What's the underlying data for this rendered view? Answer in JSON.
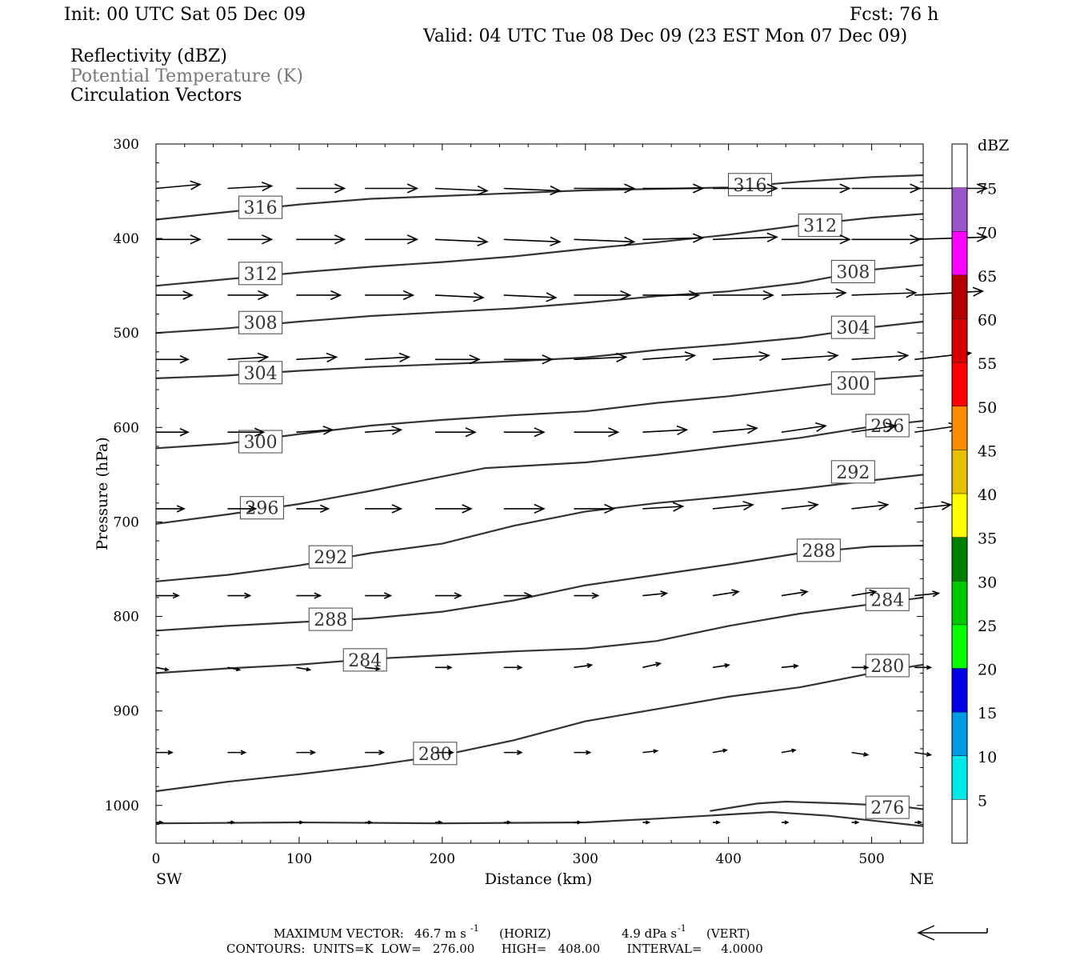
{
  "header": {
    "init": "Init: 00 UTC Sat 05 Dec 09",
    "fcst": "Fcst:   76 h",
    "valid": "Valid: 04 UTC Tue 08 Dec 09 (23 EST Mon 07 Dec 09)"
  },
  "legend": {
    "line1": "Reflectivity (dBZ)",
    "line2": "Potential Temperature (K)",
    "line3": "Circulation Vectors"
  },
  "footer": {
    "max_prefix": "MAXIMUM VECTOR:",
    "max_horiz_val": "46.7 m s",
    "max_horiz_unit": "(HORIZ)",
    "max_vert_val": "4.9 dPa s",
    "max_vert_unit": "(VERT)",
    "exp": "-1",
    "contours": "CONTOURS:  UNITS=K  LOW=   276.00       HIGH=   408.00       INTERVAL=     4.0000"
  },
  "chart_data": {
    "type": "cross-section",
    "xlabel": "Distance (km)",
    "ylabel": "Pressure (hPa)",
    "x_left_label": "SW",
    "x_right_label": "NE",
    "xlim": [
      0,
      536
    ],
    "ylim": [
      1040,
      300
    ],
    "x_ticks": [
      0,
      100,
      200,
      300,
      400,
      500
    ],
    "y_ticks": [
      300,
      400,
      500,
      600,
      700,
      800,
      900,
      1000
    ],
    "colorbar": {
      "title": "dBZ",
      "levels": [
        5,
        10,
        15,
        20,
        25,
        30,
        35,
        40,
        45,
        50,
        55,
        60,
        65,
        70,
        75
      ],
      "colors": [
        "#ffffff",
        "#00e8e8",
        "#0099e6",
        "#0000e6",
        "#00ff00",
        "#00c800",
        "#008000",
        "#ffff00",
        "#e6bf00",
        "#ff8c00",
        "#ff0000",
        "#d60000",
        "#b40000",
        "#ff00ff",
        "#9a55c8",
        "#ffffff"
      ]
    },
    "contours": [
      {
        "label": "316",
        "label_pos": [
          [
            73,
            367
          ],
          [
            415,
            343
          ]
        ],
        "points": [
          [
            0,
            380
          ],
          [
            50,
            372
          ],
          [
            100,
            364
          ],
          [
            150,
            358
          ],
          [
            200,
            355
          ],
          [
            300,
            349
          ],
          [
            400,
            346
          ],
          [
            450,
            340
          ],
          [
            500,
            335
          ],
          [
            536,
            333
          ]
        ]
      },
      {
        "label": "312",
        "label_pos": [
          [
            73,
            437
          ],
          [
            464,
            386
          ]
        ],
        "points": [
          [
            0,
            450
          ],
          [
            50,
            443
          ],
          [
            100,
            436
          ],
          [
            150,
            430
          ],
          [
            200,
            425
          ],
          [
            250,
            419
          ],
          [
            300,
            411
          ],
          [
            350,
            404
          ],
          [
            400,
            396
          ],
          [
            450,
            386
          ],
          [
            500,
            378
          ],
          [
            536,
            374
          ]
        ]
      },
      {
        "label": "308",
        "label_pos": [
          [
            73,
            489
          ],
          [
            487,
            435
          ]
        ],
        "points": [
          [
            0,
            500
          ],
          [
            50,
            495
          ],
          [
            100,
            488
          ],
          [
            150,
            482
          ],
          [
            200,
            478
          ],
          [
            250,
            474
          ],
          [
            300,
            468
          ],
          [
            350,
            461
          ],
          [
            400,
            456
          ],
          [
            450,
            447
          ],
          [
            500,
            433
          ],
          [
            536,
            428
          ]
        ]
      },
      {
        "label": "304",
        "label_pos": [
          [
            73,
            542
          ],
          [
            487,
            494
          ]
        ],
        "points": [
          [
            0,
            548
          ],
          [
            50,
            545
          ],
          [
            100,
            540
          ],
          [
            150,
            536
          ],
          [
            200,
            533
          ],
          [
            250,
            530
          ],
          [
            300,
            526
          ],
          [
            350,
            518
          ],
          [
            400,
            512
          ],
          [
            450,
            505
          ],
          [
            500,
            494
          ],
          [
            536,
            488
          ]
        ]
      },
      {
        "label": "300",
        "label_pos": [
          [
            73,
            615
          ],
          [
            487,
            553
          ]
        ],
        "points": [
          [
            0,
            622
          ],
          [
            50,
            617
          ],
          [
            100,
            607
          ],
          [
            150,
            598
          ],
          [
            200,
            592
          ],
          [
            250,
            587
          ],
          [
            300,
            583
          ],
          [
            350,
            574
          ],
          [
            400,
            567
          ],
          [
            450,
            558
          ],
          [
            500,
            549
          ],
          [
            536,
            545
          ]
        ]
      },
      {
        "label": "296",
        "label_pos": [
          [
            74,
            685
          ],
          [
            511,
            598
          ]
        ],
        "points": [
          [
            0,
            702
          ],
          [
            50,
            692
          ],
          [
            100,
            681
          ],
          [
            150,
            667
          ],
          [
            200,
            652
          ],
          [
            230,
            643
          ],
          [
            300,
            637
          ],
          [
            350,
            629
          ],
          [
            400,
            620
          ],
          [
            450,
            611
          ],
          [
            500,
            599
          ],
          [
            536,
            593
          ]
        ]
      },
      {
        "label": "292",
        "label_pos": [
          [
            122,
            737
          ],
          [
            487,
            647
          ]
        ],
        "points": [
          [
            0,
            763
          ],
          [
            50,
            756
          ],
          [
            100,
            746
          ],
          [
            150,
            733
          ],
          [
            200,
            723
          ],
          [
            250,
            704
          ],
          [
            300,
            689
          ],
          [
            350,
            680
          ],
          [
            400,
            673
          ],
          [
            450,
            665
          ],
          [
            500,
            656
          ],
          [
            536,
            650
          ]
        ]
      },
      {
        "label": "288",
        "label_pos": [
          [
            122,
            803
          ],
          [
            463,
            730
          ]
        ],
        "points": [
          [
            0,
            815
          ],
          [
            50,
            810
          ],
          [
            100,
            806
          ],
          [
            150,
            802
          ],
          [
            200,
            795
          ],
          [
            250,
            783
          ],
          [
            300,
            767
          ],
          [
            350,
            756
          ],
          [
            400,
            745
          ],
          [
            450,
            733
          ],
          [
            500,
            726
          ],
          [
            536,
            725
          ]
        ]
      },
      {
        "label": "284",
        "label_pos": [
          [
            146,
            846
          ],
          [
            511,
            782
          ]
        ],
        "points": [
          [
            0,
            860
          ],
          [
            50,
            855
          ],
          [
            100,
            851
          ],
          [
            150,
            845
          ],
          [
            200,
            841
          ],
          [
            250,
            837
          ],
          [
            300,
            834
          ],
          [
            350,
            826
          ],
          [
            400,
            810
          ],
          [
            450,
            797
          ],
          [
            500,
            787
          ],
          [
            536,
            780
          ]
        ]
      },
      {
        "label": "280",
        "label_pos": [
          [
            195,
            945
          ],
          [
            511,
            852
          ]
        ],
        "points": [
          [
            0,
            985
          ],
          [
            50,
            975
          ],
          [
            100,
            967
          ],
          [
            150,
            958
          ],
          [
            200,
            947
          ],
          [
            250,
            931
          ],
          [
            300,
            911
          ],
          [
            350,
            898
          ],
          [
            400,
            885
          ],
          [
            450,
            875
          ],
          [
            500,
            860
          ],
          [
            536,
            851
          ]
        ]
      },
      {
        "label": "276",
        "label_pos": [
          [
            511,
            1002
          ]
        ],
        "points": [
          [
            0,
            1019
          ],
          [
            100,
            1018
          ],
          [
            200,
            1019
          ],
          [
            300,
            1018
          ],
          [
            350,
            1014
          ],
          [
            430,
            1007
          ],
          [
            470,
            1011
          ],
          [
            536,
            1022
          ]
        ]
      },
      {
        "label": "",
        "label_pos": [],
        "points": [
          [
            387,
            1006
          ],
          [
            420,
            998
          ],
          [
            440,
            996
          ],
          [
            480,
            998
          ],
          [
            520,
            1001
          ],
          [
            536,
            1004
          ]
        ]
      }
    ],
    "vectors": [
      {
        "p": 347,
        "u": [
          0.55,
          0.55,
          0.6,
          0.65,
          0.65,
          0.7,
          0.75,
          0.75,
          0.8,
          0.85,
          0.85,
          0.9
        ],
        "v": [
          -0.05,
          -0.03,
          0,
          0,
          0.03,
          0.03,
          0,
          0,
          0,
          0,
          0,
          0
        ]
      },
      {
        "p": 401,
        "u": [
          0.55,
          0.55,
          0.6,
          0.65,
          0.65,
          0.7,
          0.75,
          0.75,
          0.8,
          0.85,
          0.85,
          0.9
        ],
        "v": [
          0,
          0,
          0,
          0,
          0.03,
          0.03,
          0.03,
          -0.02,
          -0.03,
          0,
          0,
          -0.03
        ]
      },
      {
        "p": 460,
        "u": [
          0.45,
          0.5,
          0.55,
          0.6,
          0.6,
          0.65,
          0.7,
          0.7,
          0.75,
          0.8,
          0.8,
          0.85
        ],
        "v": [
          0,
          0,
          0,
          0,
          0.03,
          0.03,
          0,
          0,
          0,
          -0.03,
          -0.03,
          -0.05
        ]
      },
      {
        "p": 528,
        "u": [
          0.4,
          0.5,
          0.5,
          0.55,
          0.55,
          0.6,
          0.65,
          0.65,
          0.7,
          0.7,
          0.7,
          0.7
        ],
        "v": [
          0,
          -0.03,
          -0.03,
          -0.03,
          0,
          0,
          -0.03,
          -0.05,
          -0.05,
          -0.05,
          -0.05,
          -0.08
        ]
      },
      {
        "p": 605,
        "u": [
          0.4,
          0.45,
          0.45,
          0.45,
          0.5,
          0.5,
          0.55,
          0.55,
          0.55,
          0.55,
          0.55,
          0.55
        ],
        "v": [
          0,
          0,
          -0.03,
          -0.03,
          0,
          0,
          0,
          -0.03,
          -0.05,
          -0.08,
          -0.08,
          -0.08
        ]
      },
      {
        "p": 686,
        "u": [
          0.35,
          0.35,
          0.4,
          0.45,
          0.45,
          0.5,
          0.5,
          0.5,
          0.5,
          0.45,
          0.45,
          0.45
        ],
        "v": [
          0,
          0,
          0,
          0,
          0,
          0,
          0,
          -0.03,
          -0.05,
          -0.05,
          -0.05,
          -0.05
        ]
      },
      {
        "p": 778,
        "u": [
          0.28,
          0.28,
          0.3,
          0.32,
          0.32,
          0.34,
          0.3,
          0.3,
          0.32,
          0.32,
          0.3,
          0.3
        ],
        "v": [
          0,
          0,
          0,
          0,
          0,
          0,
          0,
          -0.03,
          -0.05,
          -0.05,
          -0.05,
          -0.03
        ]
      },
      {
        "p": 854,
        "u": [
          0.15,
          0.15,
          0.17,
          0.18,
          0.2,
          0.22,
          0.22,
          0.22,
          0.2,
          0.2,
          0.2,
          0.2
        ],
        "v": [
          0.03,
          0.03,
          0.03,
          0.02,
          0,
          0,
          -0.03,
          -0.05,
          -0.03,
          -0.02,
          0,
          0
        ]
      },
      {
        "p": 944,
        "u": [
          0.2,
          0.22,
          0.23,
          0.23,
          0.22,
          0.22,
          0.2,
          0.18,
          0.17,
          0.17,
          0.2,
          0.2
        ],
        "v": [
          0,
          0,
          0,
          0,
          0,
          0,
          0,
          -0.02,
          -0.03,
          -0.03,
          0.03,
          0.03
        ]
      },
      {
        "p": 1018,
        "u": [
          0.08,
          0.08,
          0.08,
          0.08,
          0.08,
          0.08,
          0.08,
          0.08,
          0.08,
          0.08,
          0.08,
          0.08
        ],
        "v": [
          0,
          0,
          0,
          0,
          0,
          0,
          0,
          0,
          0,
          0,
          0,
          0
        ]
      }
    ],
    "vector_x": [
      0,
      50,
      98,
      146,
      195,
      243,
      292,
      340,
      389,
      437,
      486,
      530
    ]
  }
}
